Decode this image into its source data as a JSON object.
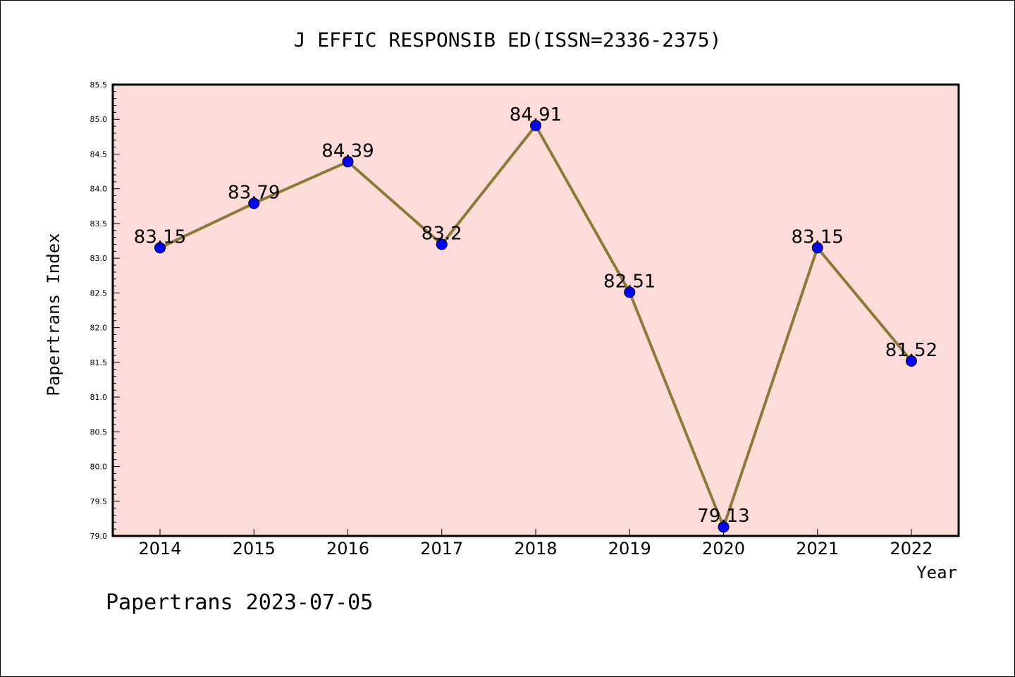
{
  "title": "J EFFIC RESPONSIB ED(ISSN=2336-2375)",
  "footer": "Papertrans 2023-07-05",
  "colors": {
    "plot_background": "#fddbd9",
    "line": "#8b7a3a",
    "marker": "#0000ff"
  },
  "chart_data": {
    "type": "line",
    "title": "J EFFIC RESPONSIB ED(ISSN=2336-2375)",
    "xlabel": "Year",
    "ylabel": "Papertrans Index",
    "categories": [
      "2014",
      "2015",
      "2016",
      "2017",
      "2018",
      "2019",
      "2020",
      "2021",
      "2022"
    ],
    "values": [
      83.15,
      83.79,
      84.39,
      83.2,
      84.91,
      82.51,
      79.13,
      83.15,
      81.52
    ],
    "data_labels": [
      "83.15",
      "83.79",
      "84.39",
      "83.2",
      "84.91",
      "82.51",
      "79.13",
      "83.15",
      "81.52"
    ],
    "ylim": [
      79.0,
      85.5
    ],
    "yticks": [
      "79.0",
      "79.5",
      "80.0",
      "80.5",
      "81.0",
      "81.5",
      "82.0",
      "82.5",
      "83.0",
      "83.5",
      "84.0",
      "84.5",
      "85.0",
      "85.5"
    ],
    "grid": false,
    "legend": "none"
  }
}
